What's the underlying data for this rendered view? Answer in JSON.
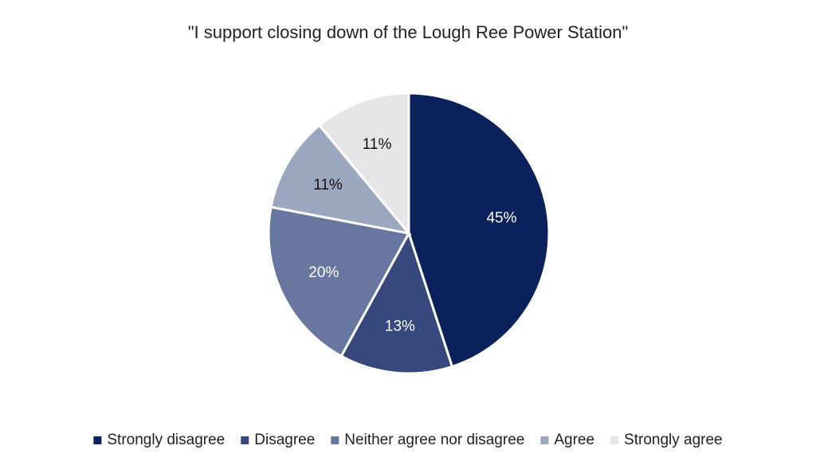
{
  "chart_data": {
    "type": "pie",
    "title": "\"I support closing down of the Lough Ree Power Station\"",
    "categories": [
      "Strongly disagree",
      "Disagree",
      "Neither agree nor disagree",
      "Agree",
      "Strongly agree"
    ],
    "values": [
      45,
      13,
      20,
      11,
      11
    ],
    "value_labels": [
      "45%",
      "13%",
      "20%",
      "11%",
      "11%"
    ],
    "colors": [
      "#0b215b",
      "#37497c",
      "#68779f",
      "#9ba6bf",
      "#e6e6e8"
    ],
    "legend": "bottom"
  }
}
